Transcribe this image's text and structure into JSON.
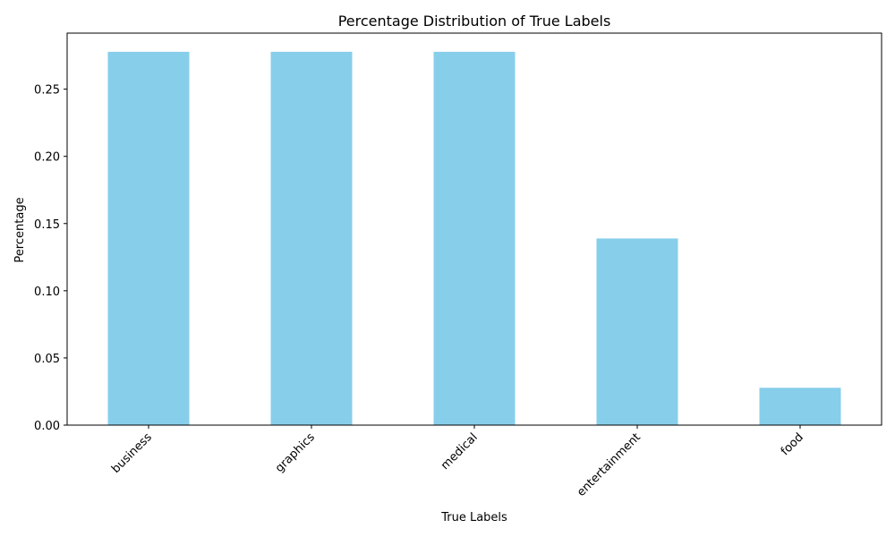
{
  "chart_data": {
    "type": "bar",
    "title": "Percentage Distribution of True Labels",
    "xlabel": "True Labels",
    "ylabel": "Percentage",
    "categories": [
      "business",
      "graphics",
      "medical",
      "entertainment",
      "food"
    ],
    "values": [
      0.2778,
      0.2778,
      0.2778,
      0.1389,
      0.0278
    ],
    "ylim": [
      0,
      0.2917
    ],
    "yticks": [
      0.0,
      0.05,
      0.1,
      0.15,
      0.2,
      0.25
    ],
    "ytick_labels": [
      "0.00",
      "0.05",
      "0.10",
      "0.15",
      "0.20",
      "0.25"
    ],
    "bar_color": "#87ceeb",
    "grid": false,
    "legend": null
  }
}
